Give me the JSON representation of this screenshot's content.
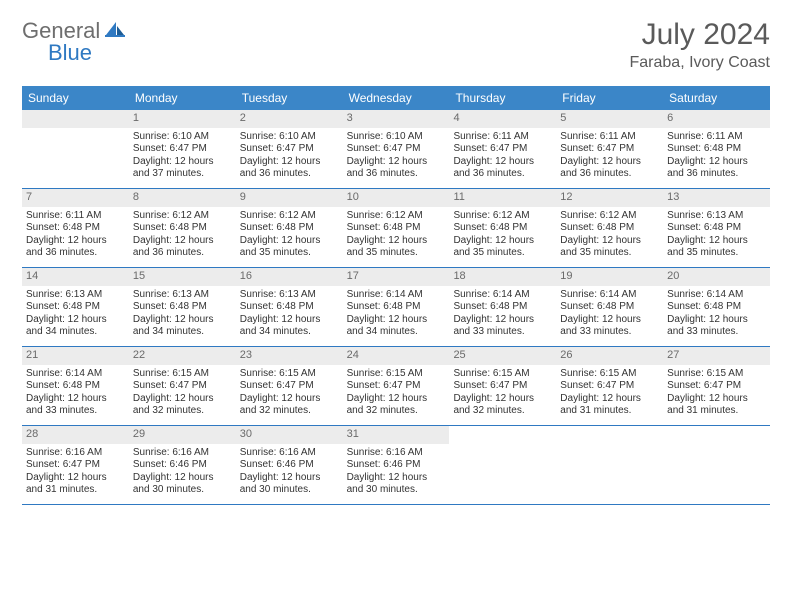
{
  "logo": {
    "word1": "General",
    "word2": "Blue"
  },
  "header": {
    "month_title": "July 2024",
    "location": "Faraba, Ivory Coast"
  },
  "colors": {
    "accent": "#3b86c8",
    "rule": "#2f79c2",
    "daynum_bg": "#ececec",
    "text": "#333333",
    "muted": "#6e6e6e"
  },
  "dow": [
    "Sunday",
    "Monday",
    "Tuesday",
    "Wednesday",
    "Thursday",
    "Friday",
    "Saturday"
  ],
  "weeks": [
    [
      null,
      {
        "n": "1",
        "sr": "Sunrise: 6:10 AM",
        "ss": "Sunset: 6:47 PM",
        "d1": "Daylight: 12 hours",
        "d2": "and 37 minutes."
      },
      {
        "n": "2",
        "sr": "Sunrise: 6:10 AM",
        "ss": "Sunset: 6:47 PM",
        "d1": "Daylight: 12 hours",
        "d2": "and 36 minutes."
      },
      {
        "n": "3",
        "sr": "Sunrise: 6:10 AM",
        "ss": "Sunset: 6:47 PM",
        "d1": "Daylight: 12 hours",
        "d2": "and 36 minutes."
      },
      {
        "n": "4",
        "sr": "Sunrise: 6:11 AM",
        "ss": "Sunset: 6:47 PM",
        "d1": "Daylight: 12 hours",
        "d2": "and 36 minutes."
      },
      {
        "n": "5",
        "sr": "Sunrise: 6:11 AM",
        "ss": "Sunset: 6:47 PM",
        "d1": "Daylight: 12 hours",
        "d2": "and 36 minutes."
      },
      {
        "n": "6",
        "sr": "Sunrise: 6:11 AM",
        "ss": "Sunset: 6:48 PM",
        "d1": "Daylight: 12 hours",
        "d2": "and 36 minutes."
      }
    ],
    [
      {
        "n": "7",
        "sr": "Sunrise: 6:11 AM",
        "ss": "Sunset: 6:48 PM",
        "d1": "Daylight: 12 hours",
        "d2": "and 36 minutes."
      },
      {
        "n": "8",
        "sr": "Sunrise: 6:12 AM",
        "ss": "Sunset: 6:48 PM",
        "d1": "Daylight: 12 hours",
        "d2": "and 36 minutes."
      },
      {
        "n": "9",
        "sr": "Sunrise: 6:12 AM",
        "ss": "Sunset: 6:48 PM",
        "d1": "Daylight: 12 hours",
        "d2": "and 35 minutes."
      },
      {
        "n": "10",
        "sr": "Sunrise: 6:12 AM",
        "ss": "Sunset: 6:48 PM",
        "d1": "Daylight: 12 hours",
        "d2": "and 35 minutes."
      },
      {
        "n": "11",
        "sr": "Sunrise: 6:12 AM",
        "ss": "Sunset: 6:48 PM",
        "d1": "Daylight: 12 hours",
        "d2": "and 35 minutes."
      },
      {
        "n": "12",
        "sr": "Sunrise: 6:12 AM",
        "ss": "Sunset: 6:48 PM",
        "d1": "Daylight: 12 hours",
        "d2": "and 35 minutes."
      },
      {
        "n": "13",
        "sr": "Sunrise: 6:13 AM",
        "ss": "Sunset: 6:48 PM",
        "d1": "Daylight: 12 hours",
        "d2": "and 35 minutes."
      }
    ],
    [
      {
        "n": "14",
        "sr": "Sunrise: 6:13 AM",
        "ss": "Sunset: 6:48 PM",
        "d1": "Daylight: 12 hours",
        "d2": "and 34 minutes."
      },
      {
        "n": "15",
        "sr": "Sunrise: 6:13 AM",
        "ss": "Sunset: 6:48 PM",
        "d1": "Daylight: 12 hours",
        "d2": "and 34 minutes."
      },
      {
        "n": "16",
        "sr": "Sunrise: 6:13 AM",
        "ss": "Sunset: 6:48 PM",
        "d1": "Daylight: 12 hours",
        "d2": "and 34 minutes."
      },
      {
        "n": "17",
        "sr": "Sunrise: 6:14 AM",
        "ss": "Sunset: 6:48 PM",
        "d1": "Daylight: 12 hours",
        "d2": "and 34 minutes."
      },
      {
        "n": "18",
        "sr": "Sunrise: 6:14 AM",
        "ss": "Sunset: 6:48 PM",
        "d1": "Daylight: 12 hours",
        "d2": "and 33 minutes."
      },
      {
        "n": "19",
        "sr": "Sunrise: 6:14 AM",
        "ss": "Sunset: 6:48 PM",
        "d1": "Daylight: 12 hours",
        "d2": "and 33 minutes."
      },
      {
        "n": "20",
        "sr": "Sunrise: 6:14 AM",
        "ss": "Sunset: 6:48 PM",
        "d1": "Daylight: 12 hours",
        "d2": "and 33 minutes."
      }
    ],
    [
      {
        "n": "21",
        "sr": "Sunrise: 6:14 AM",
        "ss": "Sunset: 6:48 PM",
        "d1": "Daylight: 12 hours",
        "d2": "and 33 minutes."
      },
      {
        "n": "22",
        "sr": "Sunrise: 6:15 AM",
        "ss": "Sunset: 6:47 PM",
        "d1": "Daylight: 12 hours",
        "d2": "and 32 minutes."
      },
      {
        "n": "23",
        "sr": "Sunrise: 6:15 AM",
        "ss": "Sunset: 6:47 PM",
        "d1": "Daylight: 12 hours",
        "d2": "and 32 minutes."
      },
      {
        "n": "24",
        "sr": "Sunrise: 6:15 AM",
        "ss": "Sunset: 6:47 PM",
        "d1": "Daylight: 12 hours",
        "d2": "and 32 minutes."
      },
      {
        "n": "25",
        "sr": "Sunrise: 6:15 AM",
        "ss": "Sunset: 6:47 PM",
        "d1": "Daylight: 12 hours",
        "d2": "and 32 minutes."
      },
      {
        "n": "26",
        "sr": "Sunrise: 6:15 AM",
        "ss": "Sunset: 6:47 PM",
        "d1": "Daylight: 12 hours",
        "d2": "and 31 minutes."
      },
      {
        "n": "27",
        "sr": "Sunrise: 6:15 AM",
        "ss": "Sunset: 6:47 PM",
        "d1": "Daylight: 12 hours",
        "d2": "and 31 minutes."
      }
    ],
    [
      {
        "n": "28",
        "sr": "Sunrise: 6:16 AM",
        "ss": "Sunset: 6:47 PM",
        "d1": "Daylight: 12 hours",
        "d2": "and 31 minutes."
      },
      {
        "n": "29",
        "sr": "Sunrise: 6:16 AM",
        "ss": "Sunset: 6:46 PM",
        "d1": "Daylight: 12 hours",
        "d2": "and 30 minutes."
      },
      {
        "n": "30",
        "sr": "Sunrise: 6:16 AM",
        "ss": "Sunset: 6:46 PM",
        "d1": "Daylight: 12 hours",
        "d2": "and 30 minutes."
      },
      {
        "n": "31",
        "sr": "Sunrise: 6:16 AM",
        "ss": "Sunset: 6:46 PM",
        "d1": "Daylight: 12 hours",
        "d2": "and 30 minutes."
      },
      null,
      null,
      null
    ]
  ]
}
